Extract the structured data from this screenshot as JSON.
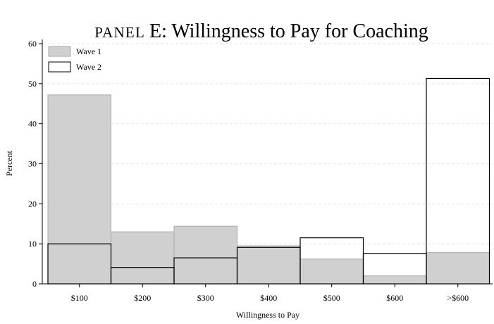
{
  "chart_data": {
    "type": "bar",
    "title_prefix": "Panel",
    "title_letter": "E",
    "title_rest": ": Willingness to Pay for Coaching",
    "xlabel": "Willingness to Pay",
    "ylabel": "Percent",
    "categories": [
      "$100",
      "$200",
      "$300",
      "$400",
      "$500",
      "$600",
      ">$600"
    ],
    "ylim": [
      0,
      60
    ],
    "yticks": [
      0,
      10,
      20,
      30,
      40,
      50,
      60
    ],
    "grid": true,
    "legend_position": "top-left",
    "series": [
      {
        "name": "Wave 1",
        "values": [
          47.2,
          13.0,
          14.4,
          9.5,
          6.2,
          2.0,
          7.8
        ],
        "fill": "#d0d0d0",
        "stroke": "#a8a8a8"
      },
      {
        "name": "Wave 2",
        "values": [
          10.0,
          4.1,
          6.5,
          9.1,
          11.5,
          7.6,
          51.3
        ],
        "fill": "none",
        "stroke": "#000000"
      }
    ]
  }
}
